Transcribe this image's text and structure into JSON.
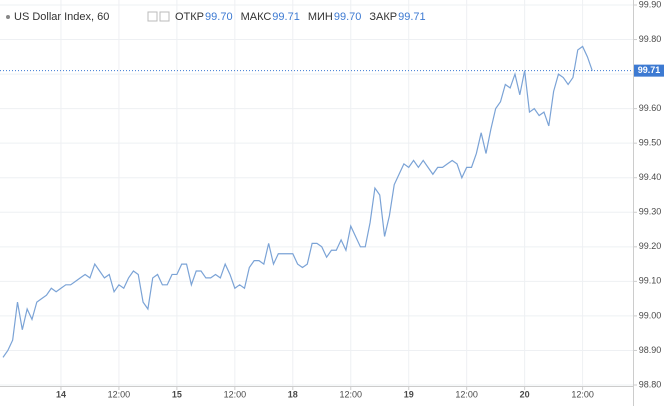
{
  "chart_data": {
    "type": "line",
    "title": "US Dollar Index, 60",
    "stats": [
      {
        "label": "ОТКР",
        "value": "99.70"
      },
      {
        "label": "МАКС",
        "value": "99.71"
      },
      {
        "label": "МИН",
        "value": "99.70"
      },
      {
        "label": "ЗАКР",
        "value": "99.71"
      }
    ],
    "categories": [
      null,
      null,
      null,
      null,
      null,
      null,
      null,
      null,
      null,
      null,
      null,
      null,
      "14",
      null,
      null,
      null,
      null,
      null,
      null,
      null,
      null,
      null,
      null,
      null,
      "12:00",
      null,
      null,
      null,
      null,
      null,
      null,
      null,
      null,
      null,
      null,
      null,
      "15",
      null,
      null,
      null,
      null,
      null,
      null,
      null,
      null,
      null,
      null,
      null,
      "12:00",
      null,
      null,
      null,
      null,
      null,
      null,
      null,
      null,
      null,
      null,
      null,
      "18",
      null,
      null,
      null,
      null,
      null,
      null,
      null,
      null,
      null,
      null,
      null,
      "12:00",
      null,
      null,
      null,
      null,
      null,
      null,
      null,
      null,
      null,
      null,
      null,
      "19",
      null,
      null,
      null,
      null,
      null,
      null,
      null,
      null,
      null,
      null,
      null,
      "12:00",
      null,
      null,
      null,
      null,
      null,
      null,
      null,
      null,
      null,
      null,
      null,
      "20",
      null,
      null,
      null,
      null,
      null,
      null,
      null,
      null,
      null,
      null,
      null,
      "12:00",
      null,
      null
    ],
    "series": [
      {
        "color": "#7ba3d6",
        "values": [
          98.88,
          98.9,
          98.93,
          99.04,
          98.96,
          99.02,
          98.99,
          99.04,
          99.05,
          99.06,
          99.08,
          99.07,
          99.08,
          99.09,
          99.09,
          99.1,
          99.11,
          99.12,
          99.11,
          99.15,
          99.13,
          99.11,
          99.12,
          99.07,
          99.09,
          99.08,
          99.11,
          99.13,
          99.12,
          99.04,
          99.02,
          99.11,
          99.12,
          99.09,
          99.09,
          99.12,
          99.12,
          99.15,
          99.15,
          99.09,
          99.13,
          99.13,
          99.11,
          99.11,
          99.12,
          99.11,
          99.15,
          99.12,
          99.08,
          99.09,
          99.08,
          99.14,
          99.16,
          99.16,
          99.15,
          99.21,
          99.15,
          99.18,
          99.18,
          99.18,
          99.18,
          99.15,
          99.14,
          99.15,
          99.21,
          99.21,
          99.2,
          99.17,
          99.19,
          99.19,
          99.22,
          99.19,
          99.26,
          99.23,
          99.2,
          99.2,
          99.27,
          99.37,
          99.35,
          99.23,
          99.29,
          99.38,
          99.41,
          99.44,
          99.43,
          99.45,
          99.43,
          99.45,
          99.43,
          99.41,
          99.43,
          99.43,
          99.44,
          99.45,
          99.44,
          99.4,
          99.43,
          99.43,
          99.47,
          99.53,
          99.47,
          99.54,
          99.6,
          99.62,
          99.67,
          99.66,
          99.7,
          99.64,
          99.71,
          99.59,
          99.6,
          99.58,
          99.59,
          99.55,
          99.65,
          99.7,
          99.69,
          99.67,
          99.69,
          99.77,
          99.78,
          99.75,
          99.71
        ]
      }
    ],
    "last_price": {
      "value": 99.71,
      "label": "99.71",
      "color": "#3d7ad2"
    },
    "ylim": [
      98.8,
      99.9
    ],
    "yticks": [
      {
        "value": 98.8,
        "label": "98.80"
      },
      {
        "value": 98.9,
        "label": "98.90"
      },
      {
        "value": 99.0,
        "label": "99.00"
      },
      {
        "value": 99.1,
        "label": "99.10"
      },
      {
        "value": 99.2,
        "label": "99.20"
      },
      {
        "value": 99.3,
        "label": "99.30"
      },
      {
        "value": 99.4,
        "label": "99.40"
      },
      {
        "value": 99.5,
        "label": "99.50"
      },
      {
        "value": 99.6,
        "label": "99.60"
      },
      {
        "value": 99.7,
        "label": "99.70"
      },
      {
        "value": 99.8,
        "label": "99.80"
      },
      {
        "value": 99.9,
        "label": "99.90"
      }
    ],
    "grid": true
  }
}
